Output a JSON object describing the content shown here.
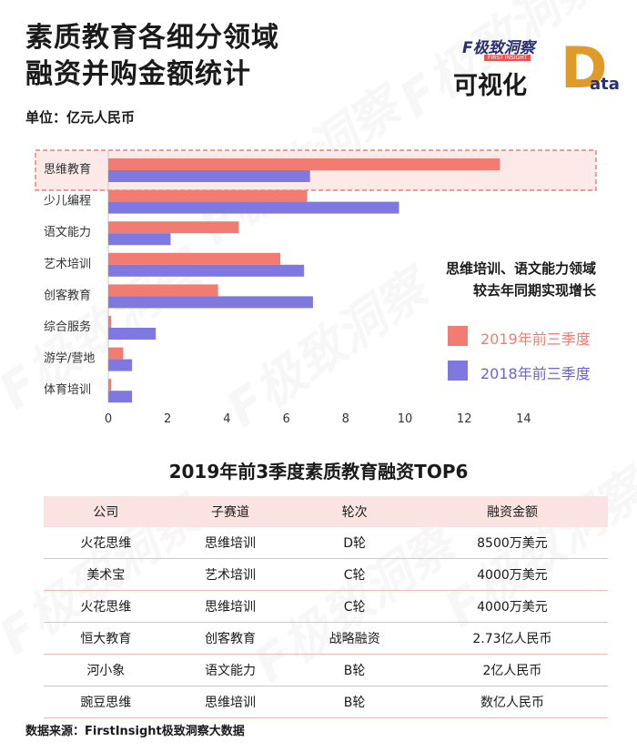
{
  "header": {
    "title_line1": "素质教育各细分领域",
    "title_line2": "融资并购金额统计",
    "unit": "单位：亿元人民币"
  },
  "logo": {
    "brand": "F极致洞察",
    "brand_sub": "FIRST INSIGHT",
    "vis_text": "可视化",
    "d_letter": "D",
    "ata_text": "ata"
  },
  "watermark": "F极致洞察",
  "chart_data": {
    "type": "bar",
    "orientation": "horizontal",
    "categories": [
      "思维教育",
      "少儿编程",
      "语文能力",
      "艺术培训",
      "创客教育",
      "综合服务",
      "游学/营地",
      "体育培训"
    ],
    "series": [
      {
        "name": "2019年前三季度",
        "color": "#f27c72",
        "values": [
          13.2,
          6.7,
          4.4,
          5.8,
          3.7,
          0.1,
          0.5,
          0.1
        ]
      },
      {
        "name": "2018年前三季度",
        "color": "#7f78e0",
        "values": [
          6.8,
          9.8,
          2.1,
          6.6,
          6.9,
          1.6,
          0.8,
          0.8
        ]
      }
    ],
    "xlim": [
      0,
      14
    ],
    "xticks": [
      0,
      2,
      4,
      6,
      8,
      10,
      12,
      14
    ],
    "highlight_category": "思维教育",
    "annotation_line1": "思维培训、语文能力领域",
    "annotation_line2": "较去年同期实现增长",
    "legend_position": "right"
  },
  "table": {
    "title": "2019年前3季度素质教育融资TOP6",
    "headers": [
      "公司",
      "子赛道",
      "轮次",
      "融资金额"
    ],
    "rows": [
      [
        "火花思维",
        "思维培训",
        "D轮",
        "8500万美元"
      ],
      [
        "美术宝",
        "艺术培训",
        "C轮",
        "4000万美元"
      ],
      [
        "火花思维",
        "思维培训",
        "C轮",
        "4000万美元"
      ],
      [
        "恒大教育",
        "创客教育",
        "战略融资",
        "2.73亿人民币"
      ],
      [
        "河小象",
        "语文能力",
        "B轮",
        "2亿人民币"
      ],
      [
        "豌豆思维",
        "思维培训",
        "B轮",
        "数亿人民币"
      ]
    ]
  },
  "footer": "数据来源：FirstInsight极致洞察大数据"
}
